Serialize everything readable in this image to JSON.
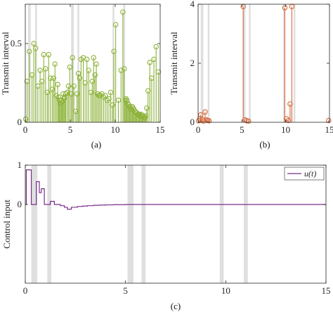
{
  "chart_data": [
    {
      "panel": "a",
      "type": "stem",
      "caption": "(a)",
      "ylabel": "Transmit interval",
      "xlim": [
        0,
        15
      ],
      "ylim": [
        0,
        0.75
      ],
      "xticks": [
        0,
        5,
        10,
        15
      ],
      "yticks": [
        0,
        0.5
      ],
      "ytick_labels": [
        "0",
        "0.5"
      ],
      "color": "#8db33a",
      "shaded_intervals": [
        [
          0.3,
          0.6
        ],
        [
          1.1,
          1.3
        ],
        [
          5.1,
          5.4
        ],
        [
          5.8,
          6.0
        ],
        [
          9.7,
          9.9
        ],
        [
          10.9,
          11.1
        ]
      ],
      "x": [
        0.05,
        0.2,
        0.45,
        0.75,
        0.95,
        1.15,
        1.4,
        1.65,
        1.85,
        2.05,
        2.25,
        2.45,
        2.6,
        2.8,
        3.0,
        3.15,
        3.3,
        3.45,
        3.6,
        3.7,
        3.8,
        3.9,
        4.0,
        4.1,
        4.2,
        4.3,
        4.4,
        4.5,
        4.65,
        4.8,
        4.95,
        5.1,
        5.25,
        5.4,
        5.6,
        5.75,
        5.9,
        6.05,
        6.2,
        6.45,
        6.65,
        6.85,
        7.05,
        7.3,
        7.45,
        7.6,
        7.75,
        7.9,
        8.05,
        8.2,
        8.35,
        8.5,
        8.7,
        8.9,
        9.1,
        9.3,
        9.5,
        9.7,
        9.85,
        10.05,
        10.35,
        10.65,
        10.85,
        11.0,
        11.1,
        11.2,
        11.3,
        11.4,
        11.5,
        11.6,
        11.7,
        11.8,
        11.9,
        12.0,
        12.1,
        12.2,
        12.3,
        12.4,
        12.5,
        12.6,
        12.7,
        12.8,
        12.9,
        13.0,
        13.1,
        13.2,
        13.3,
        13.4,
        13.5,
        13.65,
        13.85,
        14.05,
        14.3,
        14.55,
        14.8
      ],
      "values": [
        0.02,
        0.26,
        0.45,
        0.3,
        0.5,
        0.47,
        0.23,
        0.33,
        0.26,
        0.43,
        0.34,
        0.19,
        0.43,
        0.28,
        0.21,
        0.28,
        0.37,
        0.17,
        0.24,
        0.16,
        0.14,
        0.12,
        0.14,
        0.13,
        0.18,
        0.15,
        0.16,
        0.18,
        0.19,
        0.23,
        0.35,
        0.18,
        0.41,
        0.23,
        0.07,
        0.18,
        0.31,
        0.28,
        0.4,
        0.41,
        0.25,
        0.4,
        0.33,
        0.19,
        0.26,
        0.41,
        0.3,
        0.37,
        0.18,
        0.17,
        0.17,
        0.18,
        0.16,
        0.17,
        0.14,
        0.15,
        0.19,
        0.11,
        0.45,
        0.62,
        0.14,
        0.33,
        0.7,
        0.34,
        0.14,
        0.15,
        0.14,
        0.12,
        0.11,
        0.1,
        0.09,
        0.08,
        0.1,
        0.09,
        0.08,
        0.07,
        0.06,
        0.06,
        0.05,
        0.05,
        0.05,
        0.04,
        0.05,
        0.04,
        0.04,
        0.03,
        0.03,
        0.04,
        0.09,
        0.2,
        0.38,
        0.28,
        0.4,
        0.48,
        0.32
      ]
    },
    {
      "panel": "b",
      "type": "stem",
      "caption": "(b)",
      "ylabel": "Transmit interval",
      "xlim": [
        0,
        15
      ],
      "ylim": [
        0,
        4
      ],
      "xticks": [
        0,
        5,
        10,
        15
      ],
      "yticks": [
        0,
        2,
        4
      ],
      "ytick_labels": [
        "0",
        "2",
        "4"
      ],
      "color": "#d46a3a",
      "shaded_intervals": [
        [
          0.3,
          0.6
        ],
        [
          1.1,
          1.3
        ],
        [
          5.1,
          5.4
        ],
        [
          5.8,
          6.0
        ],
        [
          9.7,
          9.9
        ],
        [
          10.9,
          11.1
        ]
      ],
      "x": [
        0.05,
        0.2,
        0.3,
        0.45,
        0.6,
        0.8,
        0.95,
        1.1,
        1.25,
        5.15,
        5.35,
        5.55,
        5.75,
        9.9,
        10.1,
        10.3,
        10.5,
        10.7,
        14.9
      ],
      "values": [
        0.05,
        0.12,
        0.25,
        0.1,
        0.04,
        0.35,
        0.08,
        0.06,
        0.05,
        3.92,
        0.08,
        0.05,
        0.04,
        3.88,
        0.12,
        0.06,
        0.62,
        3.92,
        0.06
      ]
    },
    {
      "panel": "c",
      "type": "step",
      "caption": "(c)",
      "ylabel": "Control input",
      "xlim": [
        0,
        15
      ],
      "ylim": [
        -2,
        1
      ],
      "xticks": [
        0,
        5,
        10,
        15
      ],
      "yticks": [
        0,
        1
      ],
      "ytick_labels": [
        "0",
        "1"
      ],
      "legend": "u(t)",
      "legend_position": "top-right",
      "color": "#7b2d8b",
      "shaded_intervals": [
        [
          0.3,
          0.6
        ],
        [
          1.1,
          1.3
        ],
        [
          5.1,
          5.4
        ],
        [
          5.8,
          6.0
        ],
        [
          9.7,
          9.9
        ],
        [
          10.9,
          11.1
        ]
      ],
      "x": [
        0.0,
        0.05,
        0.3,
        0.55,
        0.7,
        0.8,
        0.95,
        1.25,
        1.45,
        1.75,
        1.95,
        2.1,
        2.3,
        2.6,
        2.85,
        3.1,
        3.4,
        3.7,
        4.0,
        4.4,
        5.0,
        15.0
      ],
      "values": [
        0.0,
        0.88,
        0.0,
        0.58,
        0.3,
        0.4,
        0.0,
        0.08,
        0.0,
        -0.03,
        -0.07,
        -0.12,
        -0.07,
        -0.05,
        -0.04,
        -0.03,
        -0.02,
        -0.015,
        -0.01,
        -0.005,
        0.0,
        0.0
      ]
    }
  ]
}
